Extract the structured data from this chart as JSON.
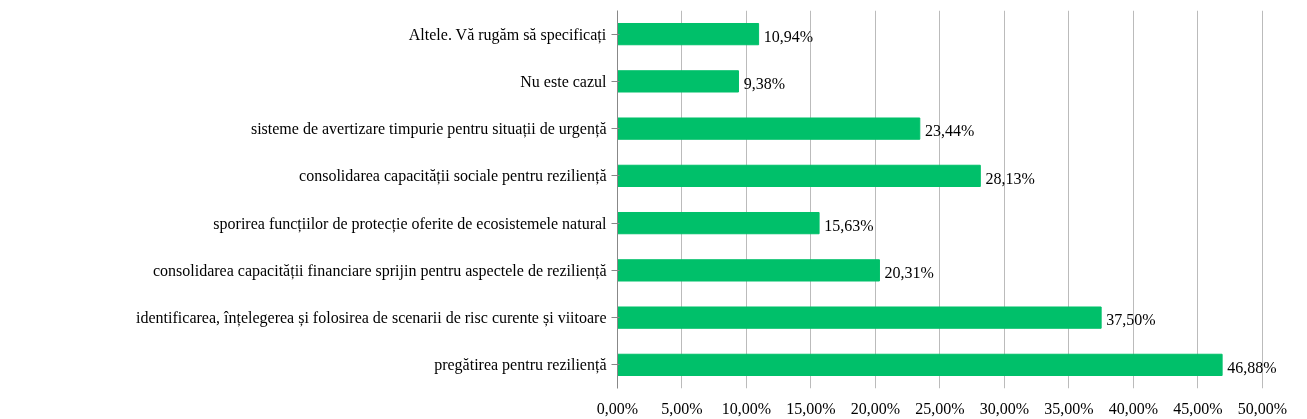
{
  "chart_data": {
    "type": "bar",
    "orientation": "horizontal",
    "categories": [
      "Altele. Vă rugăm să specificați",
      "Nu este cazul",
      "sisteme de avertizare timpurie pentru situații de urgență",
      "consolidarea capacității sociale pentru reziliență",
      "sporirea funcțiilor de protecție oferite de ecosistemele natural",
      "consolidarea capacității financiare sprijin pentru aspectele de reziliență",
      "identificarea, înțelegerea și folosirea de scenarii de risc curente și viitoare",
      "pregătirea pentru reziliență"
    ],
    "values": [
      10.94,
      9.38,
      23.44,
      28.13,
      15.63,
      20.31,
      37.5,
      46.88
    ],
    "value_labels": [
      "10,94%",
      "9,38%",
      "23,44%",
      "28,13%",
      "15,63%",
      "20,31%",
      "37,50%",
      "46,88%"
    ],
    "color": "#00c06a",
    "xlim": [
      0,
      50
    ],
    "xticks": [
      {
        "value": 0,
        "label": "0,00%"
      },
      {
        "value": 5,
        "label": "5,00%"
      },
      {
        "value": 10,
        "label": "10,00%"
      },
      {
        "value": 15,
        "label": "15,00%"
      },
      {
        "value": 20,
        "label": "20,00%"
      },
      {
        "value": 25,
        "label": "25,00%"
      },
      {
        "value": 30,
        "label": "30,00%"
      },
      {
        "value": 35,
        "label": "35,00%"
      },
      {
        "value": 40,
        "label": "40,00%"
      },
      {
        "value": 45,
        "label": "45,00%"
      },
      {
        "value": 50,
        "label": "50,00%"
      }
    ],
    "grid": "x"
  }
}
